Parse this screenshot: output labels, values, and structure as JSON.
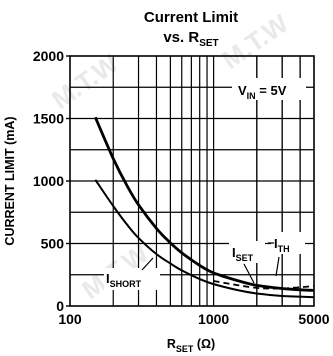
{
  "chart_data": {
    "type": "line",
    "title_line1": "Current Limit",
    "title_line2_main": "vs. R",
    "title_line2_sub": "SET",
    "xlabel_main": "R",
    "xlabel_sub": "SET",
    "xlabel_unit": " (Ω)",
    "ylabel": "CURRENT LIMIT (mA)",
    "x_scale": "log",
    "xlim": [
      100,
      5000
    ],
    "ylim": [
      0,
      2000
    ],
    "x_tick_labels": [
      "100",
      "1000",
      "5000"
    ],
    "x_tick_values": [
      100,
      1000,
      5000
    ],
    "y_tick_labels": [
      "0",
      "500",
      "1000",
      "1500",
      "2000"
    ],
    "y_tick_values": [
      0,
      500,
      1000,
      1500,
      2000
    ],
    "grid": true,
    "condition_main": "V",
    "condition_sub": "IN",
    "condition_value": " = 5V",
    "watermark": "M.T.W",
    "series": [
      {
        "name": "ISET",
        "label_main": "I",
        "label_sub": "SET",
        "style": "solid-thick",
        "x": [
          150,
          200,
          250,
          300,
          400,
          500,
          600,
          800,
          1000,
          1500,
          2000,
          3000,
          4000,
          5000
        ],
        "y": [
          1510,
          1180,
          960,
          810,
          620,
          505,
          425,
          325,
          265,
          200,
          165,
          140,
          130,
          125
        ]
      },
      {
        "name": "ITH",
        "label_main": "I",
        "label_sub": "TH",
        "style": "dashed",
        "x": [
          1000,
          1500,
          2000,
          2500,
          3000,
          4000,
          5000
        ],
        "y": [
          200,
          165,
          145,
          140,
          140,
          150,
          160
        ]
      },
      {
        "name": "ISHORT",
        "label_main": "I",
        "label_sub": "SHORT",
        "style": "solid",
        "x": [
          150,
          200,
          250,
          300,
          400,
          500,
          600,
          800,
          1000,
          1500,
          2000,
          3000,
          4000,
          5000
        ],
        "y": [
          1010,
          800,
          650,
          545,
          415,
          340,
          285,
          215,
          175,
          125,
          100,
          80,
          75,
          70
        ]
      }
    ]
  }
}
